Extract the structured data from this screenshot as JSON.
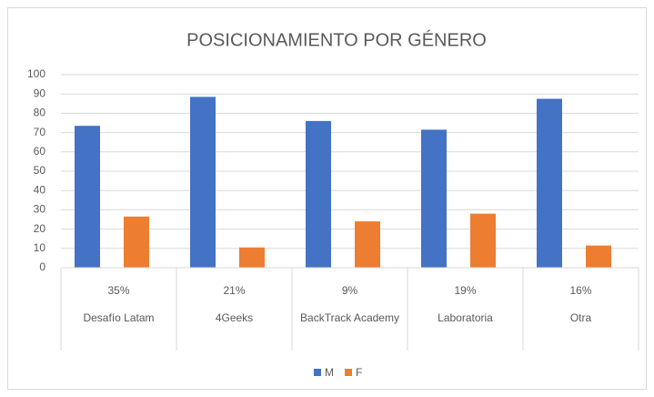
{
  "chart_data": {
    "type": "bar",
    "title": "POSICIONAMIENTO POR GÉNERO",
    "categories": [
      "Desafío Latam",
      "4Geeks",
      "BackTrack Academy",
      "Laboratoria",
      "Otra"
    ],
    "sub_categories": [
      "35%",
      "21%",
      "9%",
      "19%",
      "16%"
    ],
    "series": [
      {
        "name": "M",
        "color": "#4472c4",
        "values": [
          73.5,
          88.5,
          76,
          71.5,
          87.5
        ]
      },
      {
        "name": "F",
        "color": "#ed7d31",
        "values": [
          26.5,
          10.5,
          24,
          28,
          11.5
        ]
      }
    ],
    "ylim": [
      0,
      100
    ],
    "yticks": [
      0,
      10,
      20,
      30,
      40,
      50,
      60,
      70,
      80,
      90,
      100
    ],
    "grid": true,
    "legend": "bottom"
  }
}
